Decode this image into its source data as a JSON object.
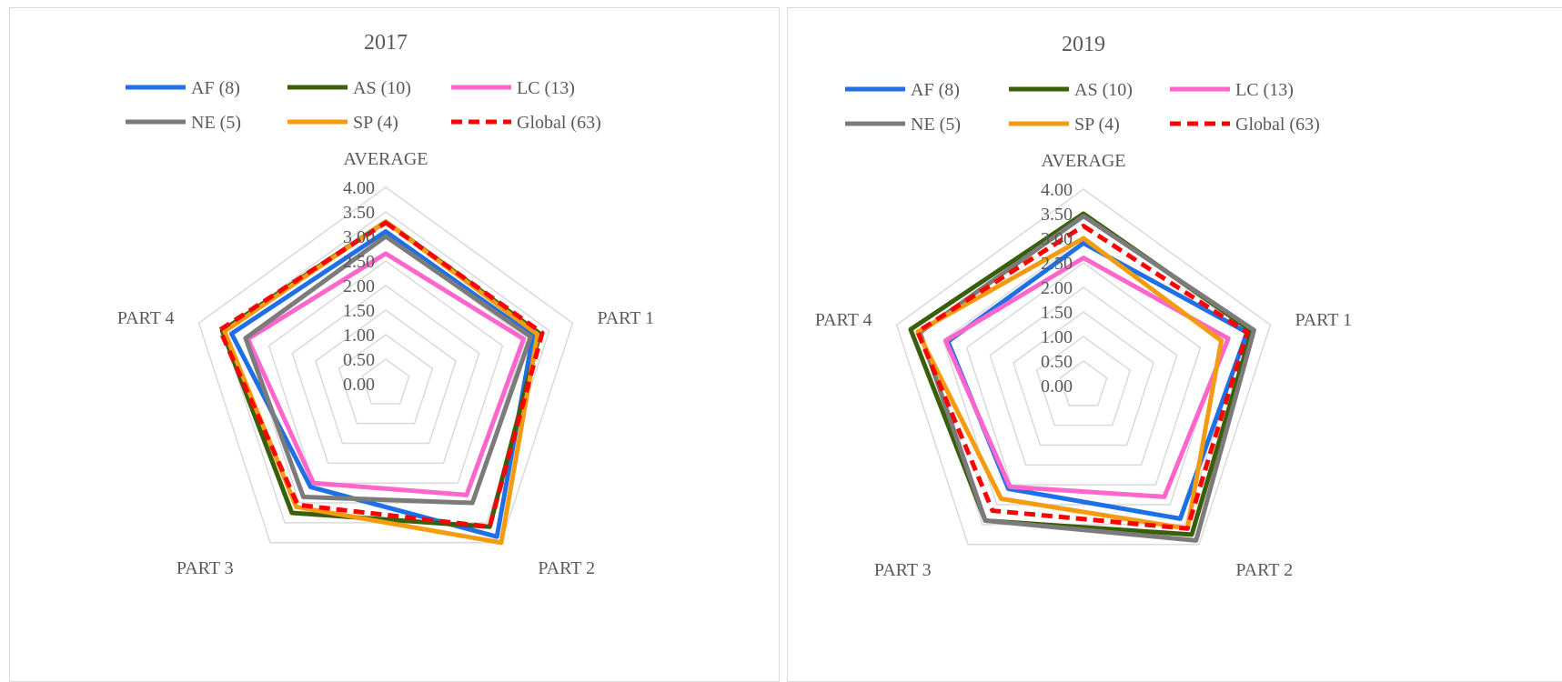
{
  "charts": [
    {
      "type": "radar",
      "title": "2017",
      "axes": [
        "AVERAGE",
        "PART 1",
        "PART 2",
        "PART 3",
        "PART 4"
      ],
      "ticks": [
        "0.00",
        "0.50",
        "1.00",
        "1.50",
        "2.00",
        "2.50",
        "3.00",
        "3.50",
        "4.00"
      ],
      "rmax": 4.0,
      "series": [
        {
          "name": "AF (8)",
          "color": "#1f6fe5",
          "dash": false,
          "values": [
            3.1,
            3.15,
            3.85,
            2.6,
            3.3
          ]
        },
        {
          "name": "AS (10)",
          "color": "#3a5f0b",
          "dash": false,
          "values": [
            3.3,
            3.3,
            3.6,
            3.25,
            3.5
          ]
        },
        {
          "name": "LC (13)",
          "color": "#ff66cc",
          "dash": false,
          "values": [
            2.65,
            2.95,
            2.8,
            2.5,
            2.95
          ]
        },
        {
          "name": "NE (5)",
          "color": "#7b7b7b",
          "dash": false,
          "values": [
            3.0,
            3.1,
            3.0,
            2.85,
            3.0
          ]
        },
        {
          "name": "SP (4)",
          "color": "#f39c12",
          "dash": false,
          "values": [
            3.3,
            3.25,
            4.0,
            3.1,
            3.45
          ]
        },
        {
          "name": "Global (63)",
          "color": "#ff0000",
          "dash": true,
          "values": [
            3.28,
            3.35,
            3.6,
            3.05,
            3.55
          ]
        }
      ]
    },
    {
      "type": "radar",
      "title": "2019",
      "axes": [
        "AVERAGE",
        "PART 1",
        "PART 2",
        "PART 3",
        "PART 4"
      ],
      "ticks": [
        "0.00",
        "0.50",
        "1.00",
        "1.50",
        "2.00",
        "2.50",
        "3.00",
        "3.50",
        "4.00"
      ],
      "rmax": 4.0,
      "series": [
        {
          "name": "AF (8)",
          "color": "#1f6fe5",
          "dash": false,
          "values": [
            2.9,
            3.5,
            3.35,
            2.6,
            2.9
          ]
        },
        {
          "name": "AS (10)",
          "color": "#3a5f0b",
          "dash": false,
          "values": [
            3.5,
            3.6,
            3.75,
            3.4,
            3.7
          ]
        },
        {
          "name": "LC (13)",
          "color": "#ff66cc",
          "dash": false,
          "values": [
            2.6,
            3.1,
            2.8,
            2.55,
            2.95
          ]
        },
        {
          "name": "NE (5)",
          "color": "#7b7b7b",
          "dash": false,
          "values": [
            3.45,
            3.65,
            3.9,
            3.4,
            3.5
          ]
        },
        {
          "name": "SP (4)",
          "color": "#f39c12",
          "dash": false,
          "values": [
            3.0,
            2.95,
            3.6,
            2.85,
            3.55
          ]
        },
        {
          "name": "Global (63)",
          "color": "#ff0000",
          "dash": true,
          "values": [
            3.25,
            3.5,
            3.6,
            3.15,
            3.55
          ]
        }
      ]
    }
  ],
  "chart_data": [
    {
      "type": "radar",
      "title": "2017",
      "categories": [
        "AVERAGE",
        "PART 1",
        "PART 2",
        "PART 3",
        "PART 4"
      ],
      "ylim": [
        0,
        4
      ],
      "series": [
        {
          "name": "AF (8)",
          "values": [
            3.1,
            3.15,
            3.85,
            2.6,
            3.3
          ]
        },
        {
          "name": "AS (10)",
          "values": [
            3.3,
            3.3,
            3.6,
            3.25,
            3.5
          ]
        },
        {
          "name": "LC (13)",
          "values": [
            2.65,
            2.95,
            2.8,
            2.5,
            2.95
          ]
        },
        {
          "name": "NE (5)",
          "values": [
            3.0,
            3.1,
            3.0,
            2.85,
            3.0
          ]
        },
        {
          "name": "SP (4)",
          "values": [
            3.3,
            3.25,
            4.0,
            3.1,
            3.45
          ]
        },
        {
          "name": "Global (63)",
          "values": [
            3.28,
            3.35,
            3.6,
            3.05,
            3.55
          ]
        }
      ]
    },
    {
      "type": "radar",
      "title": "2019",
      "categories": [
        "AVERAGE",
        "PART 1",
        "PART 2",
        "PART 3",
        "PART 4"
      ],
      "ylim": [
        0,
        4
      ],
      "series": [
        {
          "name": "AF (8)",
          "values": [
            2.9,
            3.5,
            3.35,
            2.6,
            2.9
          ]
        },
        {
          "name": "AS (10)",
          "values": [
            3.5,
            3.6,
            3.75,
            3.4,
            3.7
          ]
        },
        {
          "name": "LC (13)",
          "values": [
            2.6,
            3.1,
            2.8,
            2.55,
            2.95
          ]
        },
        {
          "name": "NE (5)",
          "values": [
            3.45,
            3.65,
            3.9,
            3.4,
            3.5
          ]
        },
        {
          "name": "SP (4)",
          "values": [
            3.0,
            2.95,
            3.6,
            2.85,
            3.55
          ]
        },
        {
          "name": "Global (63)",
          "values": [
            3.25,
            3.5,
            3.6,
            3.15,
            3.55
          ]
        }
      ]
    }
  ]
}
